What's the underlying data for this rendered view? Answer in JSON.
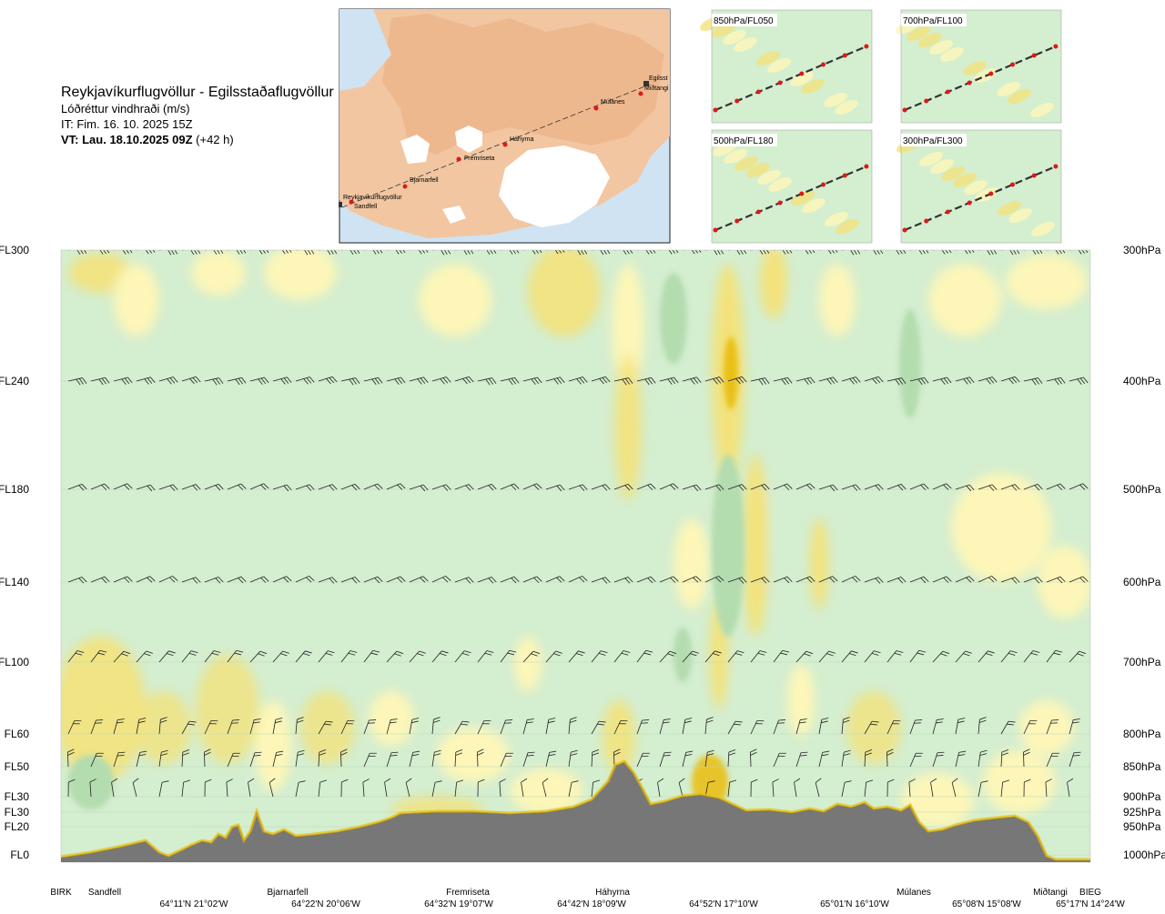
{
  "header": {
    "title": "Reykjavíkurflugvöllur - Egilsstaðaflugvöllur",
    "subtitle": "Lóðréttur vindhraði (m/s)",
    "issue": "IT: Fim. 16. 10. 2025 15Z",
    "valid_bold": "VT: Lau. 18.10.2025 09Z",
    "valid_rest": " (+42 h)"
  },
  "map": {
    "points": [
      "Reykjavíkurflugvöllur",
      "Sandfell",
      "Bjarnarfell",
      "Fremriseta",
      "Háhyrna",
      "Múlanes",
      "Miðtangi",
      "Egilsst"
    ]
  },
  "panels": [
    {
      "label": "850hPa/FL050"
    },
    {
      "label": "700hPa/FL100"
    },
    {
      "label": "500hPa/FL180"
    },
    {
      "label": "300hPa/FL300"
    }
  ],
  "colors": {
    "up_weak": "#fdf6b8",
    "up_med": "#f3e27c",
    "up_strong": "#e9c018",
    "down_weak": "#d4eed0",
    "down_med": "#b3dcaf",
    "down_strong": "#7fbf79",
    "terrain": "#777777"
  },
  "chart_data": {
    "type": "heatmap",
    "title": "Lóðréttur vindhraði (m/s)",
    "levels": [
      {
        "fl": "FL300",
        "hpa": "300hPa"
      },
      {
        "fl": "FL240",
        "hpa": "400hPa"
      },
      {
        "fl": "FL180",
        "hpa": "500hPa"
      },
      {
        "fl": "FL140",
        "hpa": "600hPa"
      },
      {
        "fl": "FL100",
        "hpa": "700hPa"
      },
      {
        "fl": "FL60",
        "hpa": "800hPa"
      },
      {
        "fl": "FL50",
        "hpa": "850hPa"
      },
      {
        "fl": "FL30",
        "hpa": "900hPa"
      },
      {
        "fl": "FL30",
        "hpa": "925hPa"
      },
      {
        "fl": "FL20",
        "hpa": "950hPa"
      },
      {
        "fl": "FL0",
        "hpa": "1000hPa"
      }
    ],
    "waypoints": [
      "BIRK",
      "Sandfell",
      "Bjarnarfell",
      "Fremriseta",
      "Háhyrna",
      "Miðtangi",
      "BIEG"
    ],
    "waypoint_extra": "Múlanes",
    "coordinates": [
      "64°11'N 21°02'W",
      "64°22'N 20°06'W",
      "64°32'N 19°07'W",
      "64°42'N 18°09'W",
      "64°52'N 17°10'W",
      "65°01'N 16°10'W",
      "65°08'N 15°08'W",
      "65°17'N 14°24'W"
    ],
    "legend": "none",
    "grid": true
  }
}
